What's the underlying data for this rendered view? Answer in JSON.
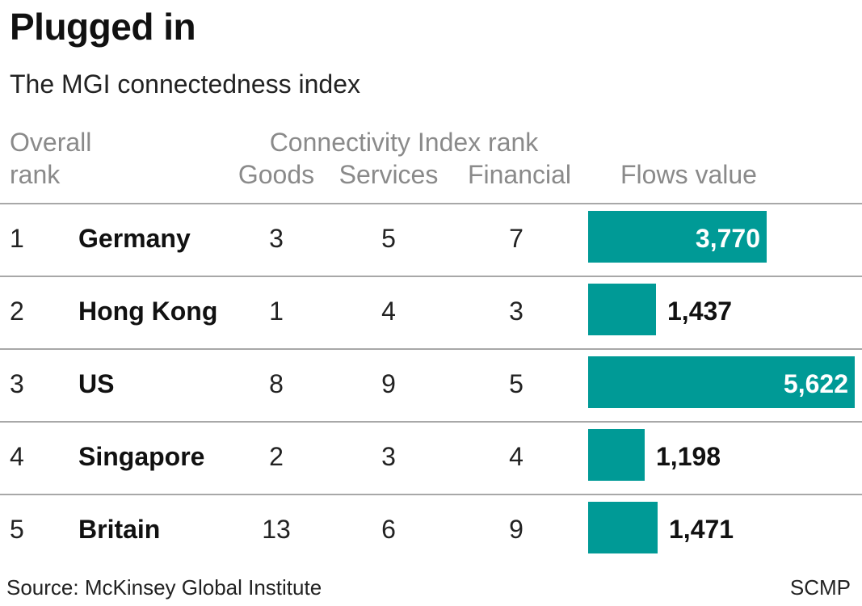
{
  "title": "Plugged in",
  "subtitle": "The MGI connectedness index",
  "headers": {
    "overall_line1": "Overall",
    "overall_line2": "rank",
    "group": "Connectivity Index rank",
    "goods": "Goods",
    "services": "Services",
    "financial": "Financial",
    "flows": "Flows value"
  },
  "colors": {
    "bar": "#009a96",
    "rule": "#a8a8a8"
  },
  "chart_data": {
    "type": "table",
    "columns": [
      "Overall rank",
      "",
      "Goods",
      "Services",
      "Financial",
      "Flows value"
    ],
    "rows": [
      {
        "rank": "1",
        "country": "Germany",
        "goods": "3",
        "services": "5",
        "financial": "7",
        "flows": 3770,
        "flows_label": "3,770"
      },
      {
        "rank": "2",
        "country": "Hong Kong",
        "goods": "1",
        "services": "4",
        "financial": "3",
        "flows": 1437,
        "flows_label": "1,437"
      },
      {
        "rank": "3",
        "country": "US",
        "goods": "8",
        "services": "9",
        "financial": "5",
        "flows": 5622,
        "flows_label": "5,622"
      },
      {
        "rank": "4",
        "country": "Singapore",
        "goods": "2",
        "services": "3",
        "financial": "4",
        "flows": 1198,
        "flows_label": "1,198"
      },
      {
        "rank": "5",
        "country": "Britain",
        "goods": "13",
        "services": "6",
        "financial": "9",
        "flows": 1471,
        "flows_label": "1,471"
      }
    ],
    "flows_max": 5622
  },
  "footer": {
    "source": "Source: McKinsey Global Institute",
    "credit": "SCMP"
  }
}
